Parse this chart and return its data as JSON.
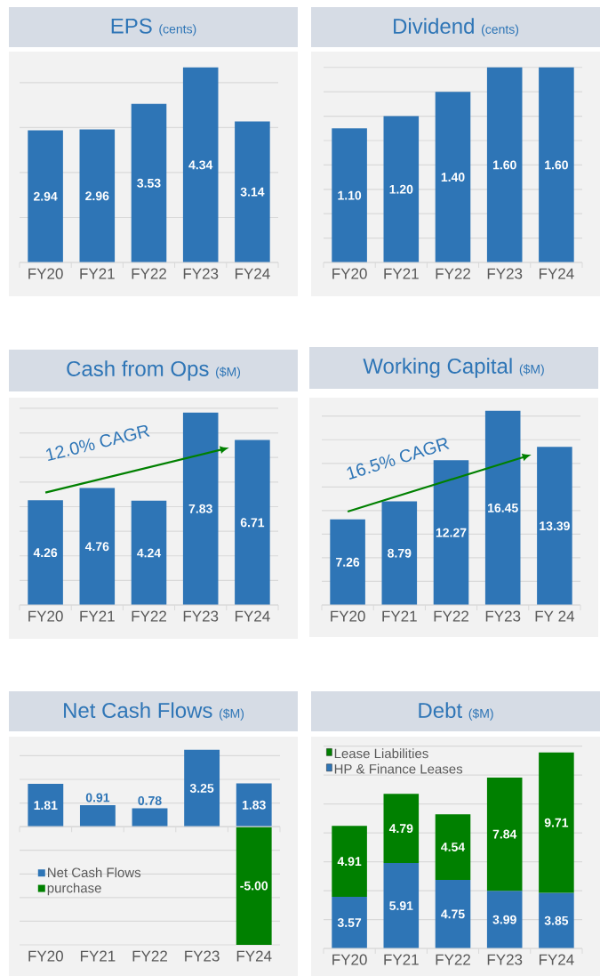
{
  "chart_data": [
    {
      "type": "bar",
      "title": "EPS",
      "subtitle": "(cents)",
      "categories": [
        "FY20",
        "FY21",
        "FY22",
        "FY23",
        "FY24"
      ],
      "series": [
        {
          "color": "#2e75b6",
          "values": [
            2.94,
            2.96,
            3.53,
            4.34,
            3.14
          ],
          "value_labels": [
            "2.94",
            "2.96",
            "3.53",
            "4.34",
            "3.14"
          ]
        }
      ],
      "grid": "y",
      "tick_labels": "x"
    },
    {
      "type": "bar",
      "title": "Dividend",
      "subtitle": "(cents)",
      "categories": [
        "FY20",
        "FY21",
        "FY22",
        "FY23",
        "FY24"
      ],
      "series": [
        {
          "color": "#2e75b6",
          "values": [
            1.1,
            1.2,
            1.4,
            1.6,
            1.6
          ],
          "value_labels": [
            "1.10",
            "1.20",
            "1.40",
            "1.60",
            "1.60"
          ]
        }
      ],
      "grid": "y",
      "tick_labels": "x"
    },
    {
      "type": "bar",
      "title": "Cash from Ops",
      "subtitle": "($M)",
      "categories": [
        "FY20",
        "FY21",
        "FY22",
        "FY23",
        "FY24"
      ],
      "series": [
        {
          "color": "#2e75b6",
          "values": [
            4.26,
            4.76,
            4.24,
            7.83,
            6.71
          ],
          "value_labels": [
            "4.26",
            "4.76",
            "4.24",
            "7.83",
            "6.71"
          ]
        }
      ],
      "grid": "y",
      "tick_labels": "x",
      "annotations": [
        "12.0% CAGR"
      ]
    },
    {
      "type": "bar",
      "title": "Working Capital",
      "subtitle": "($M)",
      "categories": [
        "FY20",
        "FY21",
        "FY22",
        "FY23",
        "FY 24"
      ],
      "series": [
        {
          "color": "#2e75b6",
          "values": [
            7.26,
            8.79,
            12.27,
            16.45,
            13.39
          ],
          "value_labels": [
            "7.26",
            "8.79",
            "12.27",
            "16.45",
            "13.39"
          ]
        }
      ],
      "grid": "y",
      "tick_labels": "x",
      "annotations": [
        "16.5% CAGR"
      ]
    },
    {
      "type": "bar",
      "title": "Net Cash Flows",
      "subtitle": "($M)",
      "categories": [
        "FY20",
        "FY21",
        "FY22",
        "FY23",
        "FY24"
      ],
      "series": [
        {
          "name": "Net Cash Flows",
          "color": "#2e75b6",
          "values": [
            1.81,
            0.91,
            0.78,
            3.25,
            1.83
          ],
          "value_labels": [
            "1.81",
            "0.91",
            "0.78",
            "3.25",
            "1.83"
          ]
        },
        {
          "name": "purchase",
          "color": "#008000",
          "values": [
            null,
            null,
            null,
            null,
            -5.0
          ],
          "value_labels": [
            null,
            null,
            null,
            null,
            "-5.00"
          ]
        }
      ],
      "grid": "y",
      "tick_labels": "x",
      "legend": "left"
    },
    {
      "type": "bar",
      "title": "Debt",
      "subtitle": "($M)",
      "categories": [
        "FY20",
        "FY21",
        "FY22",
        "FY23",
        "FY24"
      ],
      "stacked": true,
      "series": [
        {
          "name": "HP & Finance Leases",
          "color": "#2e75b6",
          "values": [
            3.57,
            5.91,
            4.75,
            3.99,
            3.85
          ],
          "value_labels": [
            "3.57",
            "5.91",
            "4.75",
            "3.99",
            "3.85"
          ]
        },
        {
          "name": "Lease Liabilities",
          "color": "#008000",
          "values": [
            4.91,
            4.79,
            4.54,
            7.84,
            9.71
          ],
          "value_labels": [
            "4.91",
            "4.79",
            "4.54",
            "7.84",
            "9.71"
          ]
        }
      ],
      "grid": "y",
      "tick_labels": "x",
      "legend": "top left"
    }
  ]
}
